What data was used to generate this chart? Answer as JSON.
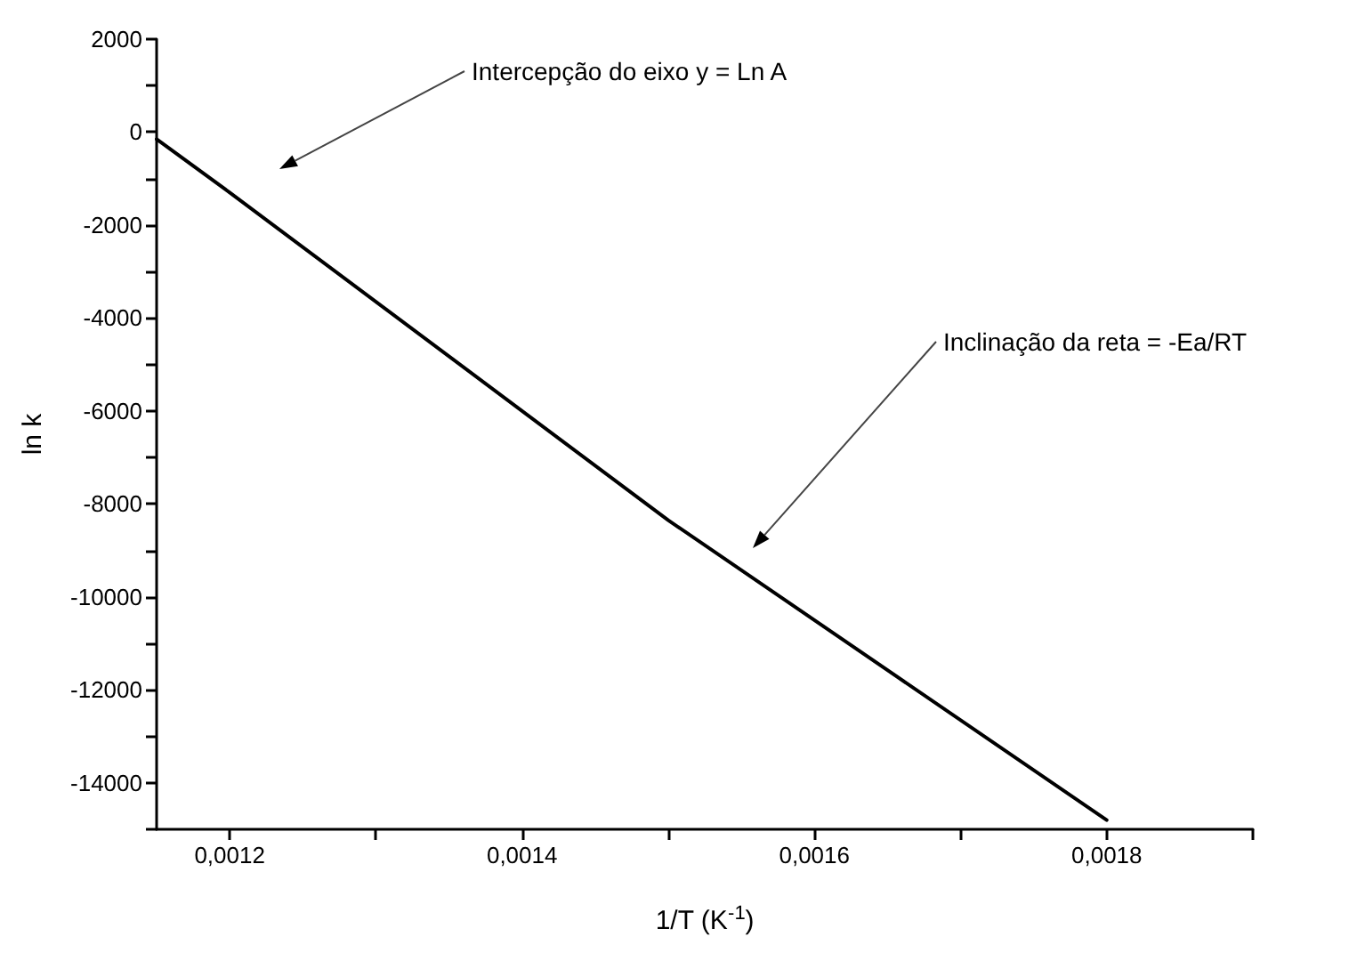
{
  "chart_data": {
    "type": "line",
    "xlabel": "1/T (K$^{-1}$)",
    "ylabel": "ln k",
    "x": [
      0.00115,
      0.0012,
      0.0015,
      0.0018
    ],
    "series": [
      {
        "color": "#000000",
        "values": [
          -150,
          -1300,
          -8350,
          -14800
        ]
      }
    ],
    "xlim": [
      0.00115,
      0.0019
    ],
    "xticks": [
      {
        "value": 0.0012,
        "label": "0,0012"
      },
      {
        "value": 0.0013,
        "label": null
      },
      {
        "value": 0.0014,
        "label": "0,0014"
      },
      {
        "value": 0.0015,
        "label": null
      },
      {
        "value": 0.0016,
        "label": "0,0016"
      },
      {
        "value": 0.0017,
        "label": null
      },
      {
        "value": 0.0018,
        "label": "0,0018"
      },
      {
        "value": 0.0019,
        "label": null
      }
    ],
    "ylim": [
      -15000,
      2000
    ],
    "yticks": [
      2000,
      {
        "value": 1000,
        "label": null
      },
      0,
      {
        "value": -1000,
        "label": null
      },
      -2000,
      {
        "value": -3000,
        "label": null
      },
      -4000,
      {
        "value": -5000,
        "label": null
      },
      -6000,
      {
        "value": -7000,
        "label": null
      },
      -8000,
      {
        "value": -9000,
        "label": null
      },
      -10000,
      {
        "value": -11000,
        "label": null
      },
      -12000,
      {
        "value": -13000,
        "label": null
      },
      -14000,
      {
        "value": -15000,
        "label": null
      }
    ],
    "annotations": [
      "Intercepção do eixo y = Ln A",
      "Inclinação da reta = -Ea/RT"
    ],
    "grid": false,
    "marker": "none",
    "line_style": "solid"
  }
}
